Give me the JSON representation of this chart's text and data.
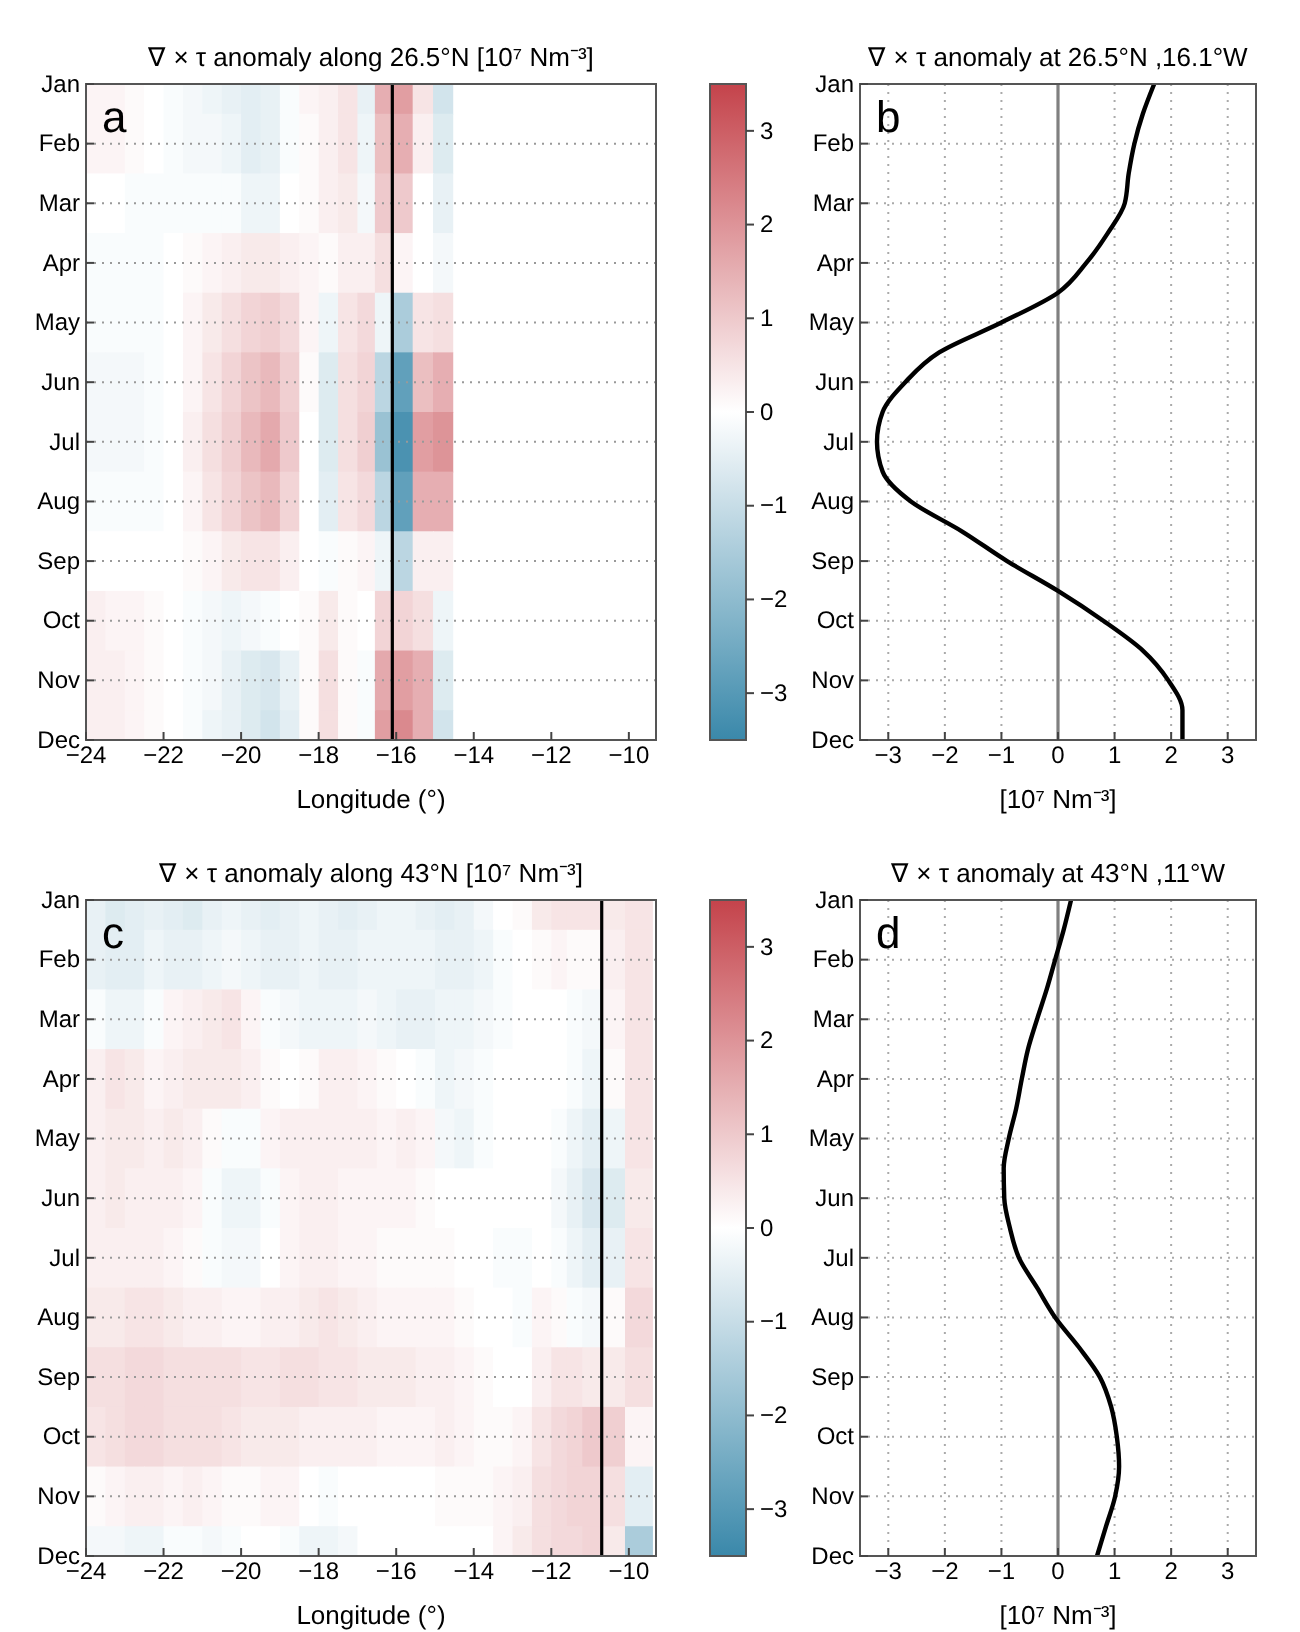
{
  "chart_data": [
    {
      "type": "heatmap",
      "title": "∇ × τ  anomaly along 26.5°N [10⁷ Nm⁻³]",
      "xlabel": "Longitude (°)",
      "annotations": [
        "a"
      ],
      "x": [
        -23.75,
        -23.25,
        -22.75,
        -22.25,
        -21.75,
        -21.25,
        -20.75,
        -20.25,
        -19.75,
        -19.25,
        -18.75,
        -18.25,
        -17.75,
        -17.25,
        -16.75,
        -16.35,
        -15.85,
        -15.3,
        -14.8
      ],
      "xlim": [
        -24,
        -9.3
      ],
      "xticks": [
        -24,
        -22,
        -20,
        -18,
        -16,
        -14,
        -12,
        -10
      ],
      "y_categories": [
        "Jan",
        "Feb",
        "Mar",
        "Apr",
        "May",
        "Jun",
        "Jul",
        "Aug",
        "Sep",
        "Oct",
        "Nov",
        "Dec"
      ],
      "cells": [
        [
          0.2,
          0.2,
          0.1,
          0,
          -0.1,
          -0.2,
          -0.3,
          -0.4,
          -0.5,
          -0.4,
          -0.1,
          0.2,
          0.3,
          0.5,
          -0.4,
          1.5,
          1.8,
          0.5,
          -0.8
        ],
        [
          0.2,
          0.2,
          0.1,
          0,
          -0.1,
          -0.2,
          -0.2,
          -0.3,
          -0.5,
          -0.4,
          -0.1,
          0.1,
          0.3,
          0.5,
          -0.3,
          1.2,
          1.5,
          0.3,
          -0.6
        ],
        [
          0,
          0,
          -0.1,
          -0.1,
          -0.1,
          -0.1,
          -0.1,
          -0.1,
          -0.3,
          -0.3,
          0,
          0.1,
          0.3,
          0.4,
          -0.2,
          1.0,
          1.0,
          0,
          -0.4
        ],
        [
          -0.1,
          -0.1,
          -0.1,
          -0.1,
          0,
          0.1,
          0.2,
          0.3,
          0.4,
          0.4,
          0.3,
          0.2,
          0.1,
          0.3,
          0.3,
          0.6,
          0.2,
          0,
          -0.2
        ],
        [
          -0.1,
          -0.1,
          -0.1,
          -0.1,
          0,
          0.2,
          0.4,
          0.6,
          0.8,
          0.9,
          0.7,
          0.2,
          -0.3,
          0.5,
          0.7,
          -0.3,
          -1.5,
          0.5,
          0.6
        ],
        [
          -0.2,
          -0.2,
          -0.2,
          -0.1,
          0,
          0.2,
          0.5,
          0.8,
          1.1,
          1.3,
          0.9,
          0.1,
          -0.6,
          0.6,
          0.8,
          -1.2,
          -2.8,
          1.2,
          1.5
        ],
        [
          -0.2,
          -0.2,
          -0.2,
          -0.1,
          0,
          0.3,
          0.6,
          0.9,
          1.3,
          1.6,
          1.0,
          0,
          -0.6,
          0.6,
          0.9,
          -1.8,
          -3.2,
          1.8,
          2.0
        ],
        [
          -0.1,
          -0.1,
          -0.1,
          -0.1,
          0,
          0.2,
          0.5,
          0.8,
          1.1,
          1.3,
          0.8,
          0,
          -0.5,
          0.5,
          0.7,
          -1.2,
          -2.8,
          1.5,
          1.5
        ],
        [
          0,
          0,
          0,
          0,
          0,
          0.1,
          0.2,
          0.4,
          0.5,
          0.5,
          0.3,
          0,
          -0.1,
          0.1,
          0.2,
          -0.3,
          -1.2,
          0.3,
          0.3
        ],
        [
          0.3,
          0.2,
          0.2,
          0.1,
          0,
          -0.1,
          -0.2,
          -0.3,
          -0.2,
          -0.1,
          0,
          0.1,
          0.4,
          0.1,
          0,
          0.8,
          0.8,
          0.6,
          -0.3
        ],
        [
          0.3,
          0.3,
          0.2,
          0.1,
          0,
          -0.1,
          -0.2,
          -0.4,
          -0.6,
          -0.7,
          -0.4,
          0.1,
          0.6,
          0.1,
          -0.1,
          1.6,
          1.8,
          1.5,
          -0.6
        ],
        [
          0.3,
          0.3,
          0.2,
          0.1,
          0,
          -0.1,
          -0.3,
          -0.4,
          -0.6,
          -0.8,
          -0.5,
          0.1,
          0.6,
          0.1,
          -0.1,
          1.8,
          2.2,
          1.5,
          -0.8
        ]
      ],
      "clim": [
        -3.5,
        3.5
      ],
      "cticks": [
        -3,
        -2,
        -1,
        0,
        1,
        2,
        3
      ],
      "grid": "y",
      "ref_lines": [
        {
          "axis": "x",
          "value": -16.1,
          "color": "#000000"
        }
      ]
    },
    {
      "type": "line",
      "orientation": "horizontal",
      "title": "∇ × τ  anomaly at 26.5°N ,16.1°W",
      "xlabel": "[10⁷ Nm⁻³]",
      "annotations": [
        "b"
      ],
      "categories": [
        "Jan",
        null,
        "Feb",
        null,
        "Mar",
        null,
        "Apr",
        null,
        "May",
        null,
        "Jun",
        null,
        "Jul",
        null,
        "Aug",
        null,
        "Sep",
        null,
        "Oct",
        null,
        "Nov",
        null,
        "Dec"
      ],
      "series": [
        {
          "color": "#000000",
          "values": [
            1.7,
            1.5,
            1.35,
            1.25,
            1.18,
            0.88,
            0.5,
            0,
            -1.0,
            -2.1,
            -2.7,
            -3.1,
            -3.2,
            -3.1,
            -2.6,
            -1.7,
            -0.9,
            0,
            0.8,
            1.5,
            1.95,
            2.2,
            2.2
          ]
        }
      ],
      "xlim": [
        -3.5,
        3.5
      ],
      "xticks": [
        -3,
        -2,
        -1,
        0,
        1,
        2,
        3
      ],
      "grid": true,
      "ref_lines": [
        {
          "axis": "x",
          "value": 0,
          "color": "#808080"
        }
      ]
    },
    {
      "type": "heatmap",
      "title": "∇ × τ  anomaly along 43°N [10⁷ Nm⁻³]",
      "xlabel": "Longitude (°)",
      "annotations": [
        "c"
      ],
      "x": [
        -23.75,
        -23.25,
        -22.75,
        -22.25,
        -21.75,
        -21.25,
        -20.75,
        -20.25,
        -19.75,
        -19.25,
        -18.75,
        -18.25,
        -17.75,
        -17.25,
        -16.75,
        -16.25,
        -15.75,
        -15.25,
        -14.75,
        -14.25,
        -13.75,
        -13.25,
        -12.75,
        -12.25,
        -11.75,
        -11.45,
        -10.95,
        -10.45,
        -9.75
      ],
      "xlim": [
        -24,
        -9.3
      ],
      "xticks": [
        -24,
        -22,
        -20,
        -18,
        -16,
        -14,
        -12,
        -10
      ],
      "y_categories": [
        "Jan",
        "Feb",
        "Mar",
        "Apr",
        "May",
        "Jun",
        "Jul",
        "Aug",
        "Sep",
        "Oct",
        "Nov",
        "Dec"
      ],
      "cells": [
        [
          -0.4,
          -0.6,
          -0.5,
          -0.4,
          -0.5,
          -0.6,
          -0.4,
          -0.3,
          -0.4,
          -0.5,
          -0.4,
          -0.3,
          -0.4,
          -0.5,
          -0.4,
          -0.3,
          -0.3,
          -0.4,
          -0.5,
          -0.4,
          -0.2,
          0,
          0.1,
          0.4,
          0.5,
          0.5,
          0.5,
          0.4,
          0.5
        ],
        [
          -0.4,
          -0.5,
          -0.5,
          -0.3,
          -0.4,
          -0.4,
          -0.3,
          -0.2,
          -0.3,
          -0.4,
          -0.4,
          -0.3,
          -0.4,
          -0.4,
          -0.3,
          -0.3,
          -0.3,
          -0.3,
          -0.4,
          -0.4,
          -0.3,
          -0.1,
          0,
          0.1,
          0.2,
          0.1,
          0.1,
          0.3,
          0.5
        ],
        [
          -0.1,
          -0.3,
          -0.3,
          -0.1,
          0.2,
          0.3,
          0.4,
          0.5,
          0.2,
          -0.1,
          -0.2,
          -0.3,
          -0.3,
          -0.3,
          -0.2,
          -0.3,
          -0.4,
          -0.4,
          -0.3,
          -0.3,
          -0.2,
          -0.1,
          0,
          0,
          0,
          -0.1,
          -0.2,
          0.2,
          0.5
        ],
        [
          0.3,
          0.5,
          0.4,
          0.2,
          0.3,
          0.4,
          0.4,
          0.4,
          0.3,
          0.1,
          0,
          0.1,
          0.3,
          0.3,
          0.2,
          0.1,
          0,
          -0.1,
          -0.3,
          -0.2,
          -0.1,
          0,
          0,
          0,
          0,
          -0.1,
          -0.3,
          0.1,
          0.5
        ],
        [
          0.3,
          0.4,
          0.4,
          0.3,
          0.4,
          0.3,
          0.1,
          -0.1,
          -0.1,
          0.2,
          0.3,
          0.3,
          0.3,
          0.3,
          0.3,
          0.2,
          0.3,
          0.2,
          -0.2,
          -0.3,
          -0.1,
          0,
          0,
          0,
          -0.1,
          -0.3,
          -0.5,
          -0.3,
          0.5
        ],
        [
          0.3,
          0.4,
          0.3,
          0.3,
          0.3,
          0.2,
          -0.1,
          -0.3,
          -0.3,
          -0.1,
          0.2,
          0.3,
          0.3,
          0.2,
          0.2,
          0.2,
          0.2,
          0.1,
          0,
          0,
          0,
          0,
          0,
          0,
          -0.2,
          -0.4,
          -0.7,
          -0.6,
          0.4
        ],
        [
          0.3,
          0.3,
          0.3,
          0.3,
          0.2,
          0.1,
          -0.1,
          -0.2,
          -0.2,
          0,
          0.2,
          0.3,
          0.3,
          0.2,
          0.2,
          0.1,
          0.1,
          0.1,
          0.1,
          0,
          0,
          -0.1,
          -0.1,
          0,
          -0.1,
          -0.3,
          -0.5,
          -0.4,
          0.5
        ],
        [
          0.4,
          0.4,
          0.5,
          0.5,
          0.4,
          0.3,
          0.3,
          0.2,
          0.2,
          0.3,
          0.3,
          0.4,
          0.5,
          0.4,
          0.3,
          0.2,
          0.2,
          0.2,
          0.2,
          0.1,
          0,
          0,
          -0.1,
          0.2,
          0.1,
          -0.1,
          -0.2,
          0.1,
          0.7
        ],
        [
          0.6,
          0.6,
          0.7,
          0.7,
          0.6,
          0.6,
          0.6,
          0.6,
          0.5,
          0.5,
          0.6,
          0.6,
          0.5,
          0.5,
          0.4,
          0.4,
          0.4,
          0.3,
          0.3,
          0.2,
          0.1,
          0,
          0,
          0.3,
          0.5,
          0.5,
          0.4,
          0.4,
          0.6
        ],
        [
          0.5,
          0.6,
          0.7,
          0.7,
          0.6,
          0.6,
          0.6,
          0.5,
          0.4,
          0.4,
          0.4,
          0.3,
          0.3,
          0.3,
          0.3,
          0.2,
          0.2,
          0.2,
          0.3,
          0.2,
          0.1,
          0.1,
          0.2,
          0.5,
          0.7,
          0.8,
          1.0,
          0.9,
          0.2
        ],
        [
          0.1,
          0.2,
          0.3,
          0.3,
          0.2,
          0.3,
          0.2,
          0.1,
          0.1,
          0.2,
          0.2,
          0,
          -0.1,
          0,
          0,
          0,
          0,
          0,
          0.1,
          0.1,
          0.1,
          0.2,
          0.3,
          0.6,
          0.7,
          0.8,
          0.8,
          0.6,
          -0.5
        ],
        [
          -0.2,
          -0.2,
          -0.3,
          -0.3,
          -0.1,
          -0.1,
          -0.2,
          -0.1,
          0,
          0,
          -0.1,
          -0.3,
          -0.3,
          -0.2,
          0,
          0,
          0,
          0,
          0,
          0,
          0,
          0.2,
          0.4,
          0.6,
          0.7,
          0.7,
          0.8,
          0.4,
          -1.5
        ]
      ],
      "clim": [
        -3.5,
        3.5
      ],
      "cticks": [
        -3,
        -2,
        -1,
        0,
        1,
        2,
        3
      ],
      "grid": "y",
      "ref_lines": [
        {
          "axis": "x",
          "value": -10.7,
          "color": "#000000"
        }
      ]
    },
    {
      "type": "line",
      "orientation": "horizontal",
      "title": "∇ × τ anomaly at 43°N ,11°W",
      "xlabel": "[10⁷ Nm⁻³]",
      "annotations": [
        "d"
      ],
      "categories": [
        "Jan",
        null,
        "Feb",
        null,
        "Mar",
        null,
        "Apr",
        null,
        "May",
        null,
        "Jun",
        null,
        "Jul",
        null,
        "Aug",
        null,
        "Sep",
        null,
        "Oct",
        null,
        "Nov",
        null,
        "Dec"
      ],
      "series": [
        {
          "color": "#000000",
          "values": [
            0.23,
            0.1,
            -0.05,
            -0.2,
            -0.37,
            -0.53,
            -0.64,
            -0.74,
            -0.87,
            -0.96,
            -0.95,
            -0.85,
            -0.69,
            -0.37,
            -0.05,
            0.37,
            0.74,
            0.94,
            1.04,
            1.08,
            1.01,
            0.85,
            0.69
          ]
        }
      ],
      "xlim": [
        -3.5,
        3.5
      ],
      "xticks": [
        -3,
        -2,
        -1,
        0,
        1,
        2,
        3
      ],
      "grid": true,
      "ref_lines": [
        {
          "axis": "x",
          "value": 0,
          "color": "#808080"
        }
      ]
    }
  ]
}
